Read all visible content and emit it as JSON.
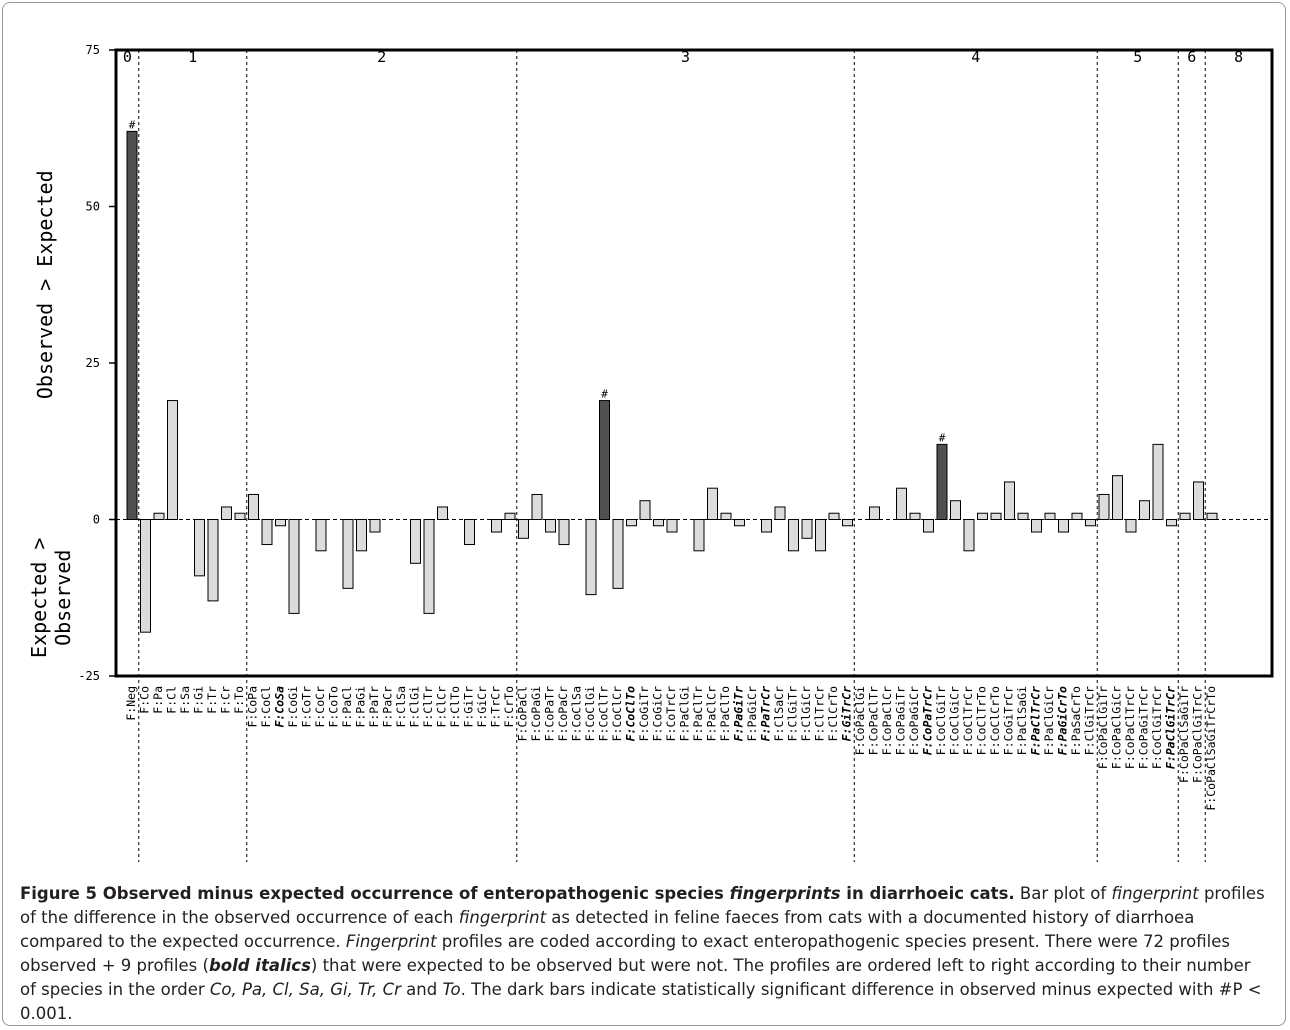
{
  "chart_data": {
    "type": "bar",
    "y_label_positive": "Observed > Expected",
    "y_label_negative": [
      "Expected >",
      "Observed"
    ],
    "ylim": [
      -25,
      75
    ],
    "yticks": [
      -25,
      0,
      25,
      50,
      75
    ],
    "group_labels": [
      "0",
      "1",
      "2",
      "3",
      "4",
      "5",
      "6",
      "8"
    ],
    "significance_marker": "#",
    "grid": false,
    "colors": {
      "significant": "#505050",
      "normal": "#dcdcdc",
      "stroke": "#000000"
    },
    "bars": [
      {
        "group": "0",
        "label": "F:Neg",
        "value": 62,
        "significant": true
      },
      {
        "group": "1",
        "label": "F:Co",
        "value": -18
      },
      {
        "group": "1",
        "label": "F:Pa",
        "value": 1
      },
      {
        "group": "1",
        "label": "F:Cl",
        "value": 19
      },
      {
        "group": "1",
        "label": "F:Sa",
        "value": 0
      },
      {
        "group": "1",
        "label": "F:Gi",
        "value": -9
      },
      {
        "group": "1",
        "label": "F:Tr",
        "value": -13
      },
      {
        "group": "1",
        "label": "F:Cr",
        "value": 2
      },
      {
        "group": "1",
        "label": "F:To",
        "value": 1
      },
      {
        "group": "2",
        "label": "F:CoPa",
        "value": 4
      },
      {
        "group": "2",
        "label": "F:CoCl",
        "value": -4
      },
      {
        "group": "2",
        "label": "F:CoSa",
        "value": -1,
        "not_observed": true
      },
      {
        "group": "2",
        "label": "F:CoGi",
        "value": -15
      },
      {
        "group": "2",
        "label": "F:CoTr",
        "value": 0
      },
      {
        "group": "2",
        "label": "F:CoCr",
        "value": -5
      },
      {
        "group": "2",
        "label": "F:CoTo",
        "value": 0
      },
      {
        "group": "2",
        "label": "F:PaCl",
        "value": -11
      },
      {
        "group": "2",
        "label": "F:PaGi",
        "value": -5
      },
      {
        "group": "2",
        "label": "F:PaTr",
        "value": -2
      },
      {
        "group": "2",
        "label": "F:PaCr",
        "value": 0
      },
      {
        "group": "2",
        "label": "F:ClSa",
        "value": 0
      },
      {
        "group": "2",
        "label": "F:ClGi",
        "value": -7
      },
      {
        "group": "2",
        "label": "F:ClTr",
        "value": -15
      },
      {
        "group": "2",
        "label": "F:ClCr",
        "value": 2
      },
      {
        "group": "2",
        "label": "F:ClTo",
        "value": 0
      },
      {
        "group": "2",
        "label": "F:GiTr",
        "value": -4
      },
      {
        "group": "2",
        "label": "F:GiCr",
        "value": 0
      },
      {
        "group": "2",
        "label": "F:TrCr",
        "value": -2
      },
      {
        "group": "2",
        "label": "F:CrTo",
        "value": 1
      },
      {
        "group": "3",
        "label": "F:CoPaCl",
        "value": -3
      },
      {
        "group": "3",
        "label": "F:CoPaGi",
        "value": 4
      },
      {
        "group": "3",
        "label": "F:CoPaTr",
        "value": -2
      },
      {
        "group": "3",
        "label": "F:CoPaCr",
        "value": -4
      },
      {
        "group": "3",
        "label": "F:CoClSa",
        "value": 0
      },
      {
        "group": "3",
        "label": "F:CoClGi",
        "value": -12
      },
      {
        "group": "3",
        "label": "F:CoClTr",
        "value": 19,
        "significant": true
      },
      {
        "group": "3",
        "label": "F:CoClCr",
        "value": -11
      },
      {
        "group": "3",
        "label": "F:CoClTo",
        "value": -1,
        "not_observed": true
      },
      {
        "group": "3",
        "label": "F:CoGiTr",
        "value": 3
      },
      {
        "group": "3",
        "label": "F:CoGiCr",
        "value": -1
      },
      {
        "group": "3",
        "label": "F:CoTrCr",
        "value": -2
      },
      {
        "group": "3",
        "label": "F:PaClGi",
        "value": 0
      },
      {
        "group": "3",
        "label": "F:PaClTr",
        "value": -5
      },
      {
        "group": "3",
        "label": "F:PaClCr",
        "value": 5
      },
      {
        "group": "3",
        "label": "F:PaClTo",
        "value": 1
      },
      {
        "group": "3",
        "label": "F:PaGiTr",
        "value": -1,
        "not_observed": true
      },
      {
        "group": "3",
        "label": "F:PaGiCr",
        "value": 0
      },
      {
        "group": "3",
        "label": "F:PaTrCr",
        "value": -2,
        "not_observed": true
      },
      {
        "group": "3",
        "label": "F:ClSaCr",
        "value": 2
      },
      {
        "group": "3",
        "label": "F:ClGiTr",
        "value": -5
      },
      {
        "group": "3",
        "label": "F:ClGiCr",
        "value": -3
      },
      {
        "group": "3",
        "label": "F:ClTrCr",
        "value": -5
      },
      {
        "group": "3",
        "label": "F:ClCrTo",
        "value": 1
      },
      {
        "group": "3",
        "label": "F:GiTrCr",
        "value": -1,
        "not_observed": true
      },
      {
        "group": "4",
        "label": "F:CoPaClGi",
        "value": 0
      },
      {
        "group": "4",
        "label": "F:CoPaClTr",
        "value": 2
      },
      {
        "group": "4",
        "label": "F:CoPaClCr",
        "value": 0
      },
      {
        "group": "4",
        "label": "F:CoPaGiTr",
        "value": 5
      },
      {
        "group": "4",
        "label": "F:CoPaGiCr",
        "value": 1
      },
      {
        "group": "4",
        "label": "F:CoPaTrCr",
        "value": -2,
        "not_observed": true
      },
      {
        "group": "4",
        "label": "F:CoClGiTr",
        "value": 12,
        "significant": true
      },
      {
        "group": "4",
        "label": "F:CoClGiCr",
        "value": 3
      },
      {
        "group": "4",
        "label": "F:CoClTrCr",
        "value": -5
      },
      {
        "group": "4",
        "label": "F:CoClTrTo",
        "value": 1
      },
      {
        "group": "4",
        "label": "F:CoClCrTo",
        "value": 1
      },
      {
        "group": "4",
        "label": "F:CoGiTrCr",
        "value": 6
      },
      {
        "group": "4",
        "label": "F:PaClSaGi",
        "value": 1
      },
      {
        "group": "4",
        "label": "F:PaClTrCr",
        "value": -2,
        "not_observed": true
      },
      {
        "group": "4",
        "label": "F:PaClGiCr",
        "value": 1
      },
      {
        "group": "4",
        "label": "F:PaGiCrTo",
        "value": -2,
        "not_observed": true
      },
      {
        "group": "4",
        "label": "F:PaSaCrTo",
        "value": 1
      },
      {
        "group": "4",
        "label": "F:ClGiTrCr",
        "value": -1
      },
      {
        "group": "5",
        "label": "F:CoPaClGiTr",
        "value": 4
      },
      {
        "group": "5",
        "label": "F:CoPaClGiCr",
        "value": 7
      },
      {
        "group": "5",
        "label": "F:CoPaClTrCr",
        "value": -2
      },
      {
        "group": "5",
        "label": "F:CoPaGiTrCr",
        "value": 3
      },
      {
        "group": "5",
        "label": "F:CoClGiTrCr",
        "value": 12
      },
      {
        "group": "5",
        "label": "F:PaClGiTrCr",
        "value": -1,
        "not_observed": true
      },
      {
        "group": "6",
        "label": "F:CoPaClSaGiTr",
        "value": 1
      },
      {
        "group": "6",
        "label": "F:CoPaClGiTrCr",
        "value": 6
      },
      {
        "group": "8",
        "label": "F:CoPaClSaGiTrCrTo",
        "value": 1
      }
    ]
  },
  "caption": {
    "title_parts": [
      {
        "text": "Figure 5 Observed minus expected occurrence of enteropathogenic species ",
        "style": "plain"
      },
      {
        "text": "fingerprints",
        "style": "italic"
      },
      {
        "text": " in diarrhoeic cats.",
        "style": "plain"
      }
    ],
    "body_parts": [
      {
        "text": " Bar plot of ",
        "style": "plain"
      },
      {
        "text": "fingerprint",
        "style": "italic"
      },
      {
        "text": " profiles of the difference in the observed occurrence of each ",
        "style": "plain"
      },
      {
        "text": "fingerprint",
        "style": "italic"
      },
      {
        "text": " as detected in feline faeces from cats with a documented history of diarrhoea compared to the expected occurrence. ",
        "style": "plain"
      },
      {
        "text": "Fingerprint",
        "style": "italic"
      },
      {
        "text": " profiles are coded according to exact enteropathogenic species present. There were 72 profiles observed + 9 profiles (",
        "style": "plain"
      },
      {
        "text": "bold italics",
        "style": "bolditalic"
      },
      {
        "text": ") that were expected to be observed but were not. The profiles are ordered left to right according to their number of species in the order ",
        "style": "plain"
      },
      {
        "text": "Co, Pa, Cl, Sa, Gi, Tr, Cr",
        "style": "italic"
      },
      {
        "text": " and ",
        "style": "plain"
      },
      {
        "text": "To",
        "style": "italic"
      },
      {
        "text": ". The dark bars indicate statistically significant difference in observed minus expected with #P < 0.001.",
        "style": "plain"
      }
    ]
  }
}
